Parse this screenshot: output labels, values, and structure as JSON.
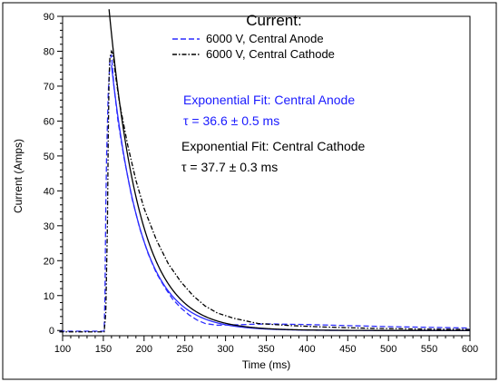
{
  "chart_data": {
    "type": "line",
    "xlabel": "Time (ms)",
    "ylabel": "Current (Amps)",
    "xlim": [
      100,
      600
    ],
    "ylim": [
      -1.5,
      90
    ],
    "x_ticks": [
      100,
      150,
      200,
      250,
      300,
      350,
      400,
      450,
      500,
      550,
      600
    ],
    "y_ticks": [
      0,
      10,
      20,
      30,
      40,
      50,
      60,
      70,
      80,
      90
    ],
    "grid": false,
    "legend": {
      "title": "Current:",
      "placement": "top-center",
      "entries": [
        "6000 V, Central Anode",
        "6000 V, Central Cathode"
      ]
    },
    "annotations": [
      {
        "text": "Exponential Fit: Central Anode",
        "color": "#1a1aff"
      },
      {
        "text": "τ = 36.6 ± 0.5 ms",
        "color": "#1a1aff"
      },
      {
        "text": "Exponential Fit: Central Cathode",
        "color": "#000000"
      },
      {
        "text": "τ = 37.7 ± 0.3 ms",
        "color": "#000000"
      }
    ],
    "series": [
      {
        "name": "6000 V, Central Anode",
        "style": "dashed",
        "color": "#2b2bff",
        "points": [
          [
            96,
            -0.2
          ],
          [
            151,
            -0.2
          ],
          [
            152,
            10
          ],
          [
            153,
            35
          ],
          [
            154,
            50
          ],
          [
            156,
            68
          ],
          [
            158,
            77
          ],
          [
            160,
            79
          ],
          [
            163,
            70
          ],
          [
            168,
            60
          ],
          [
            175,
            50
          ],
          [
            185,
            38
          ],
          [
            195,
            29
          ],
          [
            205,
            22
          ],
          [
            215,
            16.5
          ],
          [
            225,
            12.5
          ],
          [
            235,
            9
          ],
          [
            245,
            6.5
          ],
          [
            255,
            4.5
          ],
          [
            265,
            3
          ],
          [
            275,
            2
          ],
          [
            290,
            1.5
          ],
          [
            310,
            1.6
          ],
          [
            350,
            1.9
          ],
          [
            400,
            1.7
          ],
          [
            450,
            1.4
          ],
          [
            500,
            1.1
          ],
          [
            550,
            0.9
          ],
          [
            600,
            0.7
          ]
        ]
      },
      {
        "name": "6000 V, Central Cathode",
        "style": "dashdot",
        "color": "#000000",
        "points": [
          [
            96,
            -0.4
          ],
          [
            151,
            -0.4
          ],
          [
            153,
            5
          ],
          [
            155,
            30
          ],
          [
            156,
            55
          ],
          [
            157,
            72
          ],
          [
            158,
            78
          ],
          [
            160,
            80
          ],
          [
            162,
            79
          ],
          [
            165,
            73
          ],
          [
            170,
            65
          ],
          [
            180,
            53
          ],
          [
            190,
            43
          ],
          [
            200,
            35
          ],
          [
            215,
            26
          ],
          [
            230,
            19
          ],
          [
            245,
            14
          ],
          [
            260,
            10
          ],
          [
            275,
            7
          ],
          [
            290,
            5
          ],
          [
            310,
            3.5
          ],
          [
            340,
            2
          ],
          [
            380,
            1.4
          ],
          [
            420,
            1
          ],
          [
            480,
            0.6
          ],
          [
            540,
            0.4
          ],
          [
            600,
            0.3
          ]
        ]
      },
      {
        "name": "Exponential Fit: Central Anode",
        "style": "solid",
        "color": "#2b2bff",
        "fit": {
          "t0": 160,
          "a0": 76,
          "tau": 36.6,
          "x_start": 160,
          "x_end": 600
        }
      },
      {
        "name": "Exponential Fit: Central Cathode",
        "style": "solid",
        "color": "#000000",
        "fit": {
          "t0": 160,
          "a0": 85,
          "tau": 37.7,
          "x_start": 157,
          "x_end": 600
        }
      }
    ]
  }
}
